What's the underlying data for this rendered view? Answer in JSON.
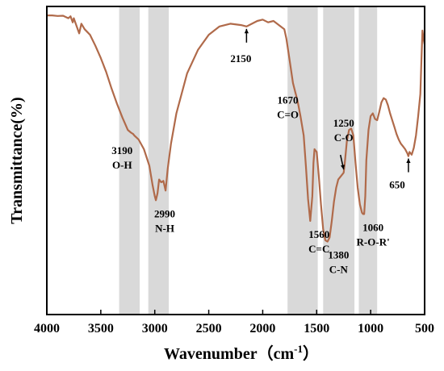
{
  "chart_data": {
    "type": "line",
    "xlabel": "Wavenumber（cm",
    "xlabel_sup": "-1",
    "xlabel_end": "）",
    "ylabel": "Transmittance(%)",
    "xlim": [
      4000,
      500
    ],
    "x_reversed": true,
    "x_ticks": [
      "4000",
      "3500",
      "3000",
      "2500",
      "2000",
      "1500",
      "1000",
      "500"
    ],
    "y_ticks": [],
    "grid": false,
    "line_color": "#b06a4a",
    "highlight_color": "#d9d9d9",
    "highlight_bands": [
      {
        "from": 3330,
        "to": 3140
      },
      {
        "from": 3060,
        "to": 2870
      },
      {
        "from": 1770,
        "to": 1490
      },
      {
        "from": 1440,
        "to": 1150
      },
      {
        "from": 1110,
        "to": 940
      }
    ],
    "series": [
      {
        "x": [
          4000,
          3950,
          3900,
          3850,
          3800,
          3780,
          3760,
          3750,
          3700,
          3680,
          3650,
          3600,
          3550,
          3500,
          3450,
          3400,
          3350,
          3300,
          3250,
          3220,
          3200,
          3190,
          3150,
          3100,
          3050,
          3020,
          3000,
          2990,
          2975,
          2960,
          2940,
          2920,
          2900,
          2880,
          2850,
          2800,
          2700,
          2600,
          2500,
          2400,
          2300,
          2200,
          2150,
          2100,
          2050,
          2000,
          1950,
          1900,
          1850,
          1800,
          1780,
          1750,
          1720,
          1700,
          1680,
          1670,
          1650,
          1620,
          1600,
          1580,
          1560,
          1540,
          1530,
          1520,
          1500,
          1480,
          1460,
          1440,
          1420,
          1400,
          1380,
          1360,
          1340,
          1320,
          1300,
          1280,
          1260,
          1250,
          1240,
          1220,
          1200,
          1180,
          1160,
          1140,
          1120,
          1100,
          1080,
          1070,
          1060,
          1050,
          1040,
          1020,
          1000,
          980,
          960,
          940,
          920,
          900,
          880,
          860,
          840,
          820,
          800,
          780,
          760,
          740,
          720,
          700,
          680,
          660,
          650,
          640,
          620,
          600,
          580,
          560,
          540,
          530,
          520,
          510,
          500
        ],
        "y": [
          98.5,
          98.5,
          98.3,
          98.4,
          97.5,
          98.2,
          96.0,
          97.5,
          92.0,
          95.5,
          93.5,
          91.5,
          87.5,
          83.0,
          78.0,
          72.0,
          66.5,
          61.5,
          57.0,
          56.0,
          55.5,
          55.0,
          53.5,
          50.0,
          44.0,
          37.0,
          33.0,
          31.5,
          34.0,
          39.0,
          38.0,
          38.5,
          35.0,
          43.0,
          52.0,
          63.0,
          77.5,
          86.0,
          91.5,
          94.5,
          95.5,
          95.0,
          94.5,
          95.5,
          96.5,
          97.0,
          96.0,
          96.5,
          95.0,
          93.5,
          90.0,
          82.0,
          74.0,
          71.0,
          68.0,
          66.0,
          62.0,
          55.0,
          44.0,
          32.0,
          24.0,
          33.0,
          45.0,
          50.0,
          49.0,
          40.0,
          30.0,
          21.0,
          17.0,
          16.5,
          18.0,
          24.0,
          31.0,
          36.0,
          39.0,
          40.0,
          41.0,
          41.5,
          45.0,
          53.0,
          57.0,
          57.5,
          55.0,
          45.0,
          36.0,
          30.0,
          27.0,
          26.5,
          26.5,
          33.0,
          46.0,
          57.0,
          62.0,
          63.0,
          61.0,
          60.5,
          63.5,
          67.0,
          68.5,
          68.0,
          66.0,
          63.0,
          60.5,
          58.0,
          55.5,
          53.5,
          52.0,
          51.0,
          50.0,
          48.5,
          47.5,
          49.0,
          48.0,
          50.5,
          55.0,
          62.0,
          70.0,
          82.0,
          93.0,
          90.0,
          88.0
        ]
      }
    ],
    "annotations": [
      {
        "lines": [
          "3190",
          "O-H"
        ],
        "x": 3190,
        "y": 55.0,
        "pos": "below-left"
      },
      {
        "lines": [
          "2990",
          "N-H"
        ],
        "x": 2990,
        "y": 31.5,
        "pos": "below"
      },
      {
        "lines": [
          "2150"
        ],
        "x": 2150,
        "y": 94.5,
        "pos": "below-arrow"
      },
      {
        "lines": [
          "1670",
          "C=O"
        ],
        "x": 1670,
        "y": 66.0,
        "pos": "left"
      },
      {
        "lines": [
          "1560",
          "C=C"
        ],
        "x": 1560,
        "y": 24.0,
        "pos": "below"
      },
      {
        "lines": [
          "1380",
          "C-N"
        ],
        "x": 1380,
        "y": 16.5,
        "pos": "below"
      },
      {
        "lines": [
          "1250",
          "C-O"
        ],
        "x": 1250,
        "y": 41.5,
        "pos": "above-arrow"
      },
      {
        "lines": [
          "1060",
          "R-O-R'"
        ],
        "x": 1060,
        "y": 26.5,
        "pos": "below"
      },
      {
        "lines": [
          "650"
        ],
        "x": 650,
        "y": 47.5,
        "pos": "below-arrow"
      }
    ]
  }
}
